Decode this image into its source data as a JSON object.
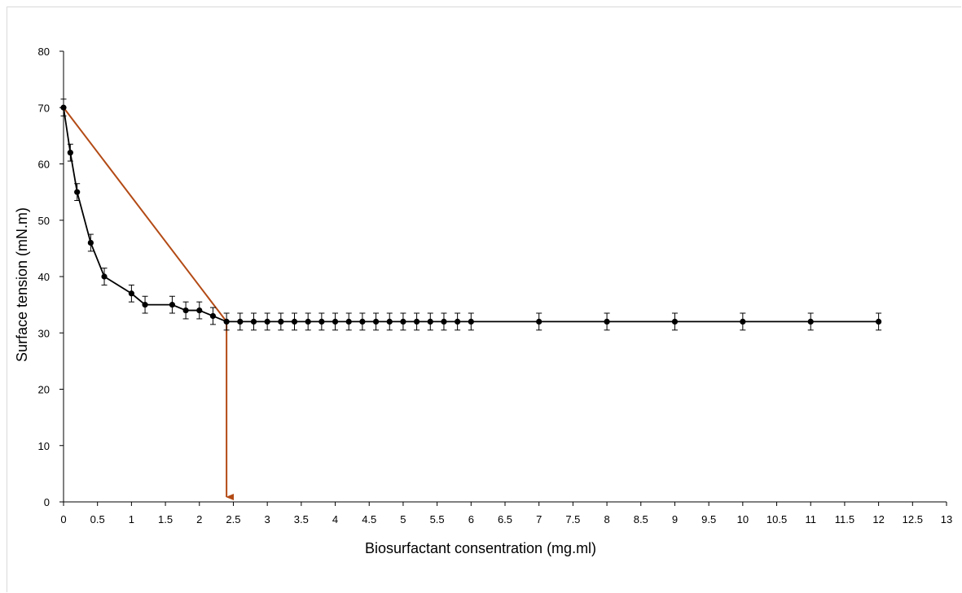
{
  "chart_data": {
    "type": "line",
    "title": "",
    "xlabel": "Biosurfactant consentration (mg.ml)",
    "ylabel": "Surface tension (mN.m)",
    "xlim": [
      0,
      13
    ],
    "ylim": [
      0,
      80
    ],
    "x_ticks": [
      "0",
      "0.5",
      "1",
      "1.5",
      "2",
      "2.5",
      "3",
      "3.5",
      "4",
      "4.5",
      "5",
      "5.5",
      "6",
      "6.5",
      "7",
      "7.5",
      "8",
      "8.5",
      "9",
      "9.5",
      "10",
      "10.5",
      "11",
      "11.5",
      "12",
      "12.5",
      "13"
    ],
    "y_ticks": [
      "0",
      "10",
      "20",
      "30",
      "40",
      "50",
      "60",
      "70",
      "80"
    ],
    "grid": false,
    "legend": "none",
    "series": [
      {
        "color": "#000000",
        "error_bar": 1.5,
        "x": [
          0,
          0.1,
          0.2,
          0.4,
          0.6,
          1.0,
          1.2,
          1.6,
          1.8,
          2.0,
          2.2,
          2.4,
          2.6,
          2.8,
          3.0,
          3.2,
          3.4,
          3.6,
          3.8,
          4.0,
          4.2,
          4.4,
          4.6,
          4.8,
          5.0,
          5.2,
          5.4,
          5.6,
          5.8,
          6,
          7,
          8,
          9,
          10,
          11,
          12
        ],
        "y": [
          70,
          62,
          55,
          46,
          40,
          37,
          35,
          35,
          34,
          34,
          33,
          32,
          32,
          32,
          32,
          32,
          32,
          32,
          32,
          32,
          32,
          32,
          32,
          32,
          32,
          32,
          32,
          32,
          32,
          32,
          32,
          32,
          32,
          32,
          32,
          32
        ]
      }
    ],
    "annotations": [
      {
        "type": "line",
        "color": "#b34a15",
        "from": [
          0,
          70
        ],
        "to": [
          2.4,
          32
        ]
      },
      {
        "type": "arrow",
        "color": "#b34a15",
        "from": [
          2.4,
          32
        ],
        "to": [
          2.4,
          0
        ]
      }
    ]
  }
}
